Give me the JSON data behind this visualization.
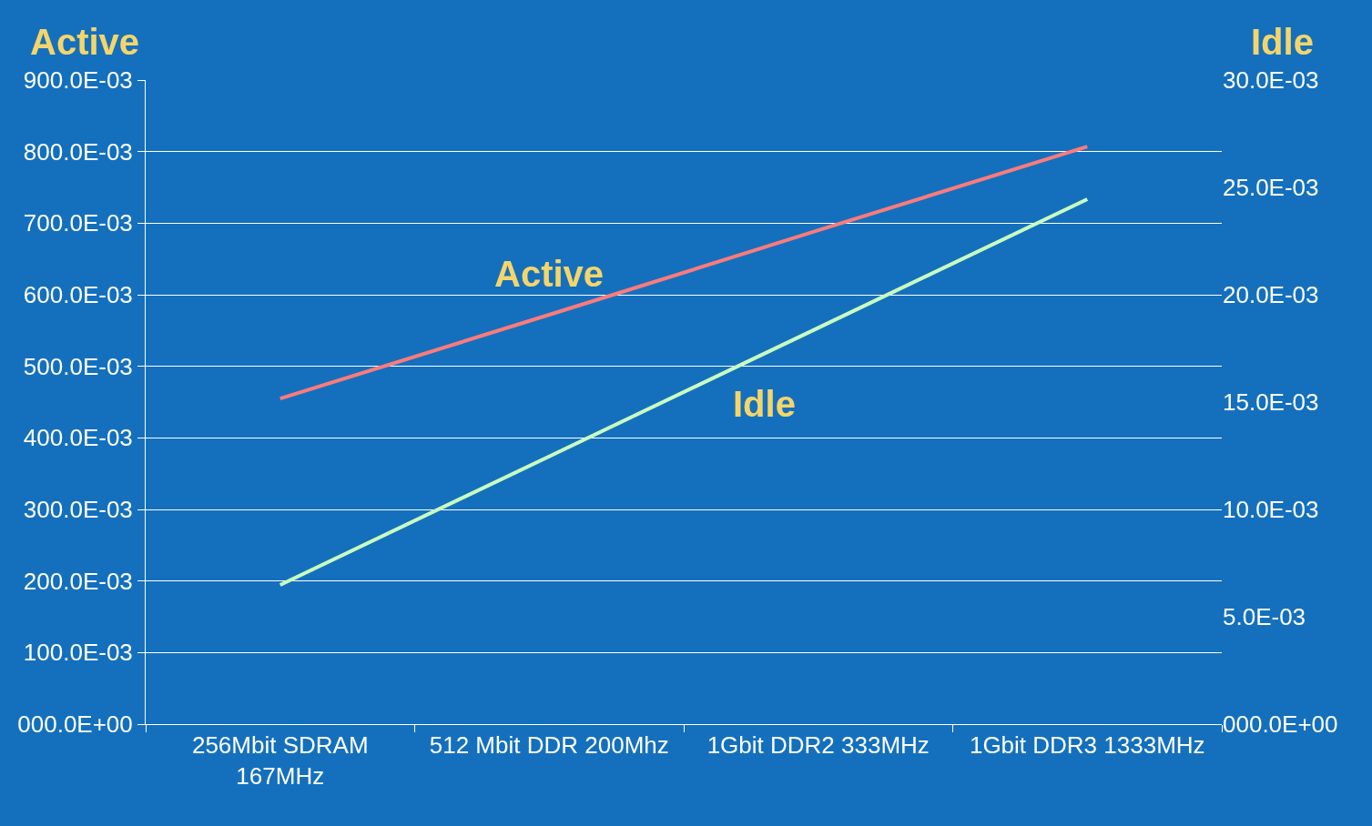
{
  "chart_data": {
    "type": "line",
    "ylabel": "Active",
    "y2label": "Idle",
    "categories": [
      "256Mbit SDRAM 167MHz",
      "512 Mbit DDR 200Mhz",
      "1Gbit DDR2 333MHz",
      "1Gbit DDR3 1333MHz"
    ],
    "series": [
      {
        "name": "Active",
        "color": "#ff7b7b",
        "values": [
          0.455,
          0.572,
          0.69,
          0.807
        ]
      },
      {
        "name": "Idle",
        "color": "#c8ffc0",
        "axis": "y2",
        "values": [
          0.00648,
          0.01247,
          0.01846,
          0.02445
        ]
      }
    ],
    "ylim": [
      0,
      0.9
    ],
    "yticks": [
      {
        "value": 0,
        "label": "000.0E+00"
      },
      {
        "value": 0.1,
        "label": "100.0E-03"
      },
      {
        "value": 0.2,
        "label": "200.0E-03"
      },
      {
        "value": 0.3,
        "label": "300.0E-03"
      },
      {
        "value": 0.4,
        "label": "400.0E-03"
      },
      {
        "value": 0.5,
        "label": "500.0E-03"
      },
      {
        "value": 0.6,
        "label": "600.0E-03"
      },
      {
        "value": 0.7,
        "label": "700.0E-03"
      },
      {
        "value": 0.8,
        "label": "800.0E-03"
      },
      {
        "value": 0.9,
        "label": "900.0E-03"
      }
    ],
    "y2lim": [
      0,
      0.03
    ],
    "y2ticks": [
      {
        "value": 0,
        "label": "000.0E+00"
      },
      {
        "value": 0.005,
        "label": "5.0E-03"
      },
      {
        "value": 0.01,
        "label": "10.0E-03"
      },
      {
        "value": 0.015,
        "label": "15.0E-03"
      },
      {
        "value": 0.02,
        "label": "20.0E-03"
      },
      {
        "value": 0.025,
        "label": "25.0E-03"
      },
      {
        "value": 0.03,
        "label": "30.0E-03"
      }
    ],
    "grid": "y",
    "legend": false,
    "marker": "none",
    "line_style": "solid"
  }
}
